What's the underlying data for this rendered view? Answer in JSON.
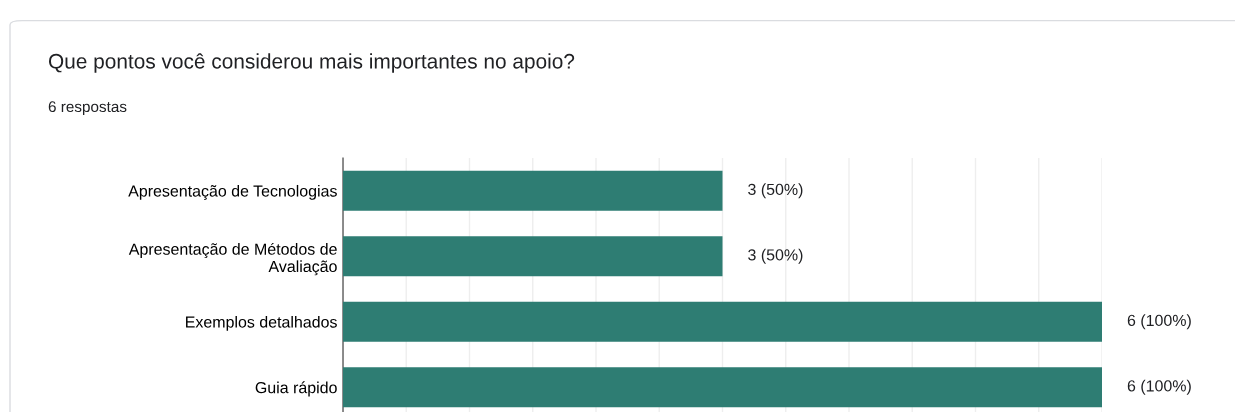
{
  "chart_data": {
    "type": "bar",
    "orientation": "horizontal",
    "title": "Que pontos você considerou mais importantes no apoio?",
    "subtitle": "6 respostas",
    "categories": [
      "Apresentação de Tecnologias",
      "Apresentação de Métodos de\nAvaliação",
      "Exemplos detalhados",
      "Guia rápido"
    ],
    "values": [
      3,
      3,
      6,
      6
    ],
    "color": "#2e7d73",
    "value_labels": [
      "3 (50%)",
      "3 (50%)",
      "6 (100%)",
      "6 (100%)"
    ],
    "xlim": [
      0,
      6
    ],
    "xticks": [
      {
        "value": 0,
        "label": null
      },
      {
        "value": 0.5,
        "label": null
      },
      {
        "value": 1,
        "label": null
      },
      {
        "value": 1.5,
        "label": null
      },
      {
        "value": 2,
        "label": null
      },
      {
        "value": 2.5,
        "label": null
      },
      {
        "value": 3,
        "label": null
      },
      {
        "value": 3.5,
        "label": null
      },
      {
        "value": 4,
        "label": null
      },
      {
        "value": 4.5,
        "label": null
      },
      {
        "value": 5,
        "label": null
      },
      {
        "value": 5.5,
        "label": null
      },
      {
        "value": 6,
        "label": null
      }
    ],
    "tick_labels": "y",
    "grid": "x"
  }
}
